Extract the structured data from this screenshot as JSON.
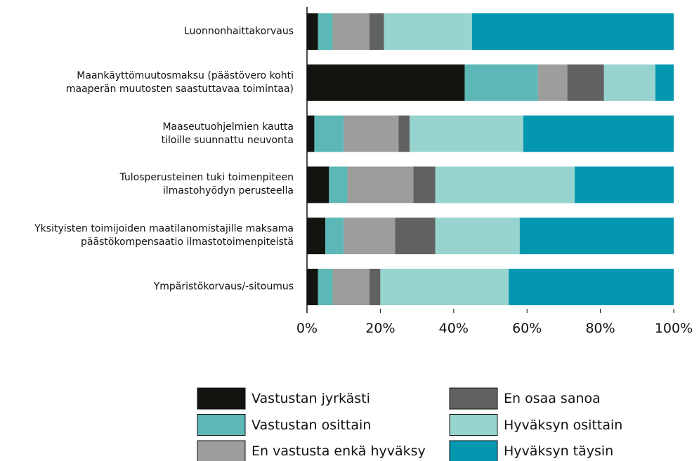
{
  "chart_data": {
    "type": "stacked_barh",
    "categories": [
      "Luonnonhaittakorvaus",
      "Maankäyttömuutosmaksu (päästövero kohti\nmaaperän muutosten saastuttavaa toimintaa)",
      "Maaseutuohjelmien kautta\ntiloille suunnattu neuvonta",
      "Tulosperusteinen tuki toimenpiteen\nilmastohyödyn perusteella",
      "Yksityisten toimijoiden maatilanomistajille maksama\npäästökompensaatio ilmastotoimenpiteistä",
      "Ympäristökorvaus/-sitoumus"
    ],
    "series": [
      {
        "name": "Vastustan jyrkästi",
        "color": "#12140f",
        "values": [
          3,
          43,
          2,
          6,
          5,
          3
        ]
      },
      {
        "name": "Vastustan osittain",
        "color": "#5bb8b6",
        "values": [
          4,
          20,
          8,
          5,
          5,
          4
        ]
      },
      {
        "name": "En vastusta enkä hyväksy",
        "color": "#9d9e9c",
        "values": [
          10,
          8,
          15,
          18,
          14,
          10
        ]
      },
      {
        "name": "En osaa sanoa",
        "color": "#606261",
        "values": [
          4,
          10,
          3,
          6,
          11,
          3
        ]
      },
      {
        "name": "Hyväksyn osittain",
        "color": "#97d3cf",
        "values": [
          24,
          14,
          31,
          38,
          23,
          35
        ]
      },
      {
        "name": "Hyväksyn täysin",
        "color": "#0497b0",
        "values": [
          55,
          5,
          41,
          27,
          42,
          45
        ]
      }
    ],
    "xlim": [
      0,
      100
    ],
    "xticks": [
      {
        "value": 0,
        "label": "0%"
      },
      {
        "value": 20,
        "label": "20%"
      },
      {
        "value": 40,
        "label": "40%"
      },
      {
        "value": 60,
        "label": "60%"
      },
      {
        "value": 80,
        "label": "80%"
      },
      {
        "value": 100,
        "label": "100%"
      }
    ]
  }
}
